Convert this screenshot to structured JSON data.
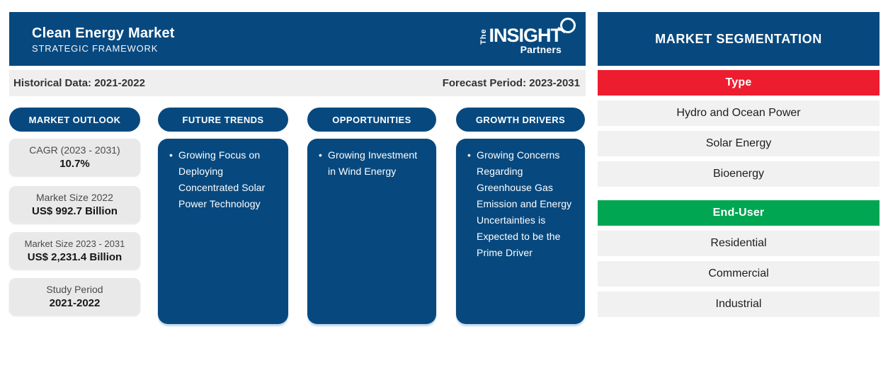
{
  "colors": {
    "brand_blue": "#07497f",
    "type_red": "#ed1c2e",
    "enduser_green": "#00a651",
    "row_gray": "#f1f1f1",
    "card_gray": "#e9e9e9",
    "period_gray": "#efefef"
  },
  "header": {
    "title": "Clean Energy Market",
    "subtitle": "STRATEGIC FRAMEWORK"
  },
  "logo": {
    "the": "The",
    "name": "INSIGHT",
    "partners": "Partners"
  },
  "period_bar": {
    "historical": "Historical Data: 2021-2022",
    "forecast": "Forecast Period: 2023-2031"
  },
  "outlook": {
    "label": "MARKET OUTLOOK",
    "cards": [
      {
        "label": "CAGR (2023 - 2031)",
        "value": "10.7%"
      },
      {
        "label": "Market Size 2022",
        "value": "US$ 992.7 Billion"
      },
      {
        "label": "Market Size 2023 - 2031",
        "value": "US$ 2,231.4 Billion"
      },
      {
        "label": "Study Period",
        "value": "2021-2022"
      }
    ]
  },
  "columns": [
    {
      "label": "FUTURE TRENDS",
      "bullets": [
        "Growing Focus on Deploying Concentrated Solar Power Technology"
      ]
    },
    {
      "label": "OPPORTUNITIES",
      "bullets": [
        "Growing Investment in Wind Energy"
      ]
    },
    {
      "label": "GROWTH DRIVERS",
      "bullets": [
        "Growing Concerns Regarding Greenhouse Gas Emission and Energy Uncertainties is Expected to be the Prime Driver"
      ]
    }
  ],
  "segmentation": {
    "title": "MARKET SEGMENTATION",
    "groups": [
      {
        "label": "Type",
        "color": "#ed1c2e",
        "items": [
          "Hydro and Ocean Power",
          "Solar Energy",
          "Bioenergy"
        ]
      },
      {
        "label": "End-User",
        "color": "#00a651",
        "items": [
          "Residential",
          "Commercial",
          "Industrial"
        ]
      }
    ]
  }
}
